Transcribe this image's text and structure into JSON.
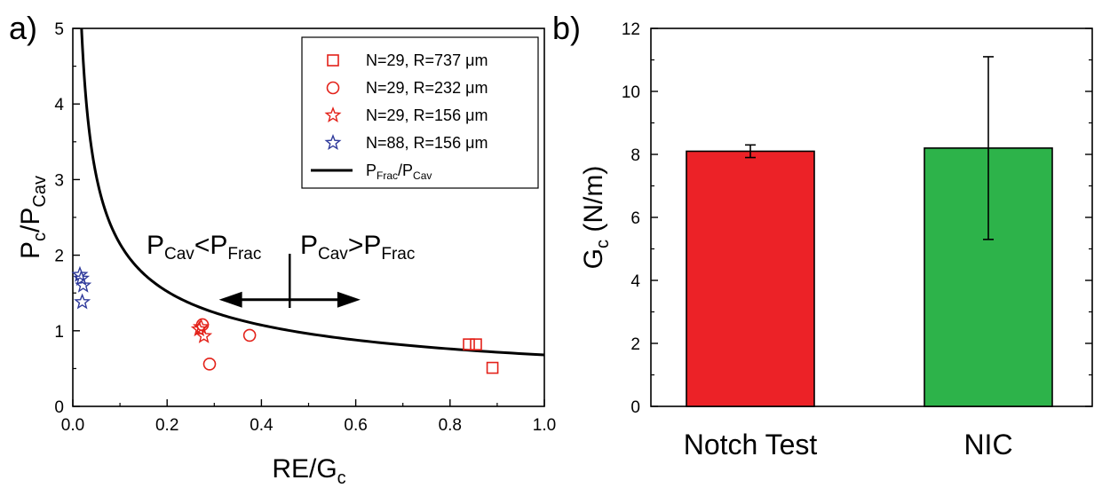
{
  "figure": {
    "panel_a_letter": "a)",
    "panel_b_letter": "b)"
  },
  "chart_data": [
    {
      "type": "scatter",
      "panel": "a)",
      "xlim": [
        0.0,
        1.0
      ],
      "ylim": [
        0,
        5
      ],
      "x_ticks": [
        "0.0",
        "0.2",
        "0.4",
        "0.6",
        "0.8",
        "1.0"
      ],
      "y_ticks": [
        "0",
        "1",
        "2",
        "3",
        "4",
        "5"
      ],
      "xlabel": {
        "main": "RE/G",
        "sub": "c"
      },
      "ylabel": {
        "p1": "P",
        "s1": "c",
        "p2": "/P",
        "s2": "Cav"
      },
      "legend_position": "top-right",
      "series": [
        {
          "name": "N=29, R=737 μm",
          "marker": "square",
          "color": "#e32119",
          "points": [
            [
              0.84,
              0.82
            ],
            [
              0.855,
              0.82
            ],
            [
              0.89,
              0.51
            ]
          ]
        },
        {
          "name": "N=29, R=232 μm",
          "marker": "circle",
          "color": "#e32119",
          "points": [
            [
              0.275,
              1.08
            ],
            [
              0.29,
              0.56
            ],
            [
              0.375,
              0.94
            ]
          ]
        },
        {
          "name": "N=29, R=156 μm",
          "marker": "star",
          "color": "#e32119",
          "points": [
            [
              0.268,
              1.02
            ],
            [
              0.272,
              1.05
            ],
            [
              0.278,
              0.93
            ]
          ]
        },
        {
          "name": "N=88, R=156 μm",
          "marker": "star",
          "color": "#2f3a9b",
          "points": [
            [
              0.015,
              1.74
            ],
            [
              0.018,
              1.69
            ],
            [
              0.022,
              1.6
            ],
            [
              0.02,
              1.38
            ]
          ]
        }
      ],
      "curve": {
        "name": "P_Frac/P_Cav",
        "legend_label": {
          "p1": "P",
          "s1": "Frac",
          "p2": "/P",
          "s2": "Cav"
        },
        "color": "#000000",
        "formula_coefficient": 0.68
      },
      "annotation": {
        "left": {
          "p1": "P",
          "s1": "Cav",
          "op": "<P",
          "s2": "Frac"
        },
        "right": {
          "p1": "P",
          "s1": "Cav",
          "op": ">P",
          "s2": "Frac"
        },
        "divider_x": 0.46,
        "arrow_from_x": 0.31,
        "arrow_to_x": 0.61,
        "arrow_y": 1.74
      }
    },
    {
      "type": "bar",
      "panel": "b)",
      "categories": [
        "Notch Test",
        "NIC"
      ],
      "values": [
        8.1,
        8.2
      ],
      "error": [
        0.2,
        2.9
      ],
      "colors": [
        "#ec2227",
        "#2db34a"
      ],
      "ylim": [
        0,
        12
      ],
      "y_ticks": [
        "0",
        "2",
        "4",
        "6",
        "8",
        "10",
        "12"
      ],
      "ylabel": {
        "main": "G",
        "sub": "c",
        "unit": " (N/m)"
      }
    }
  ]
}
